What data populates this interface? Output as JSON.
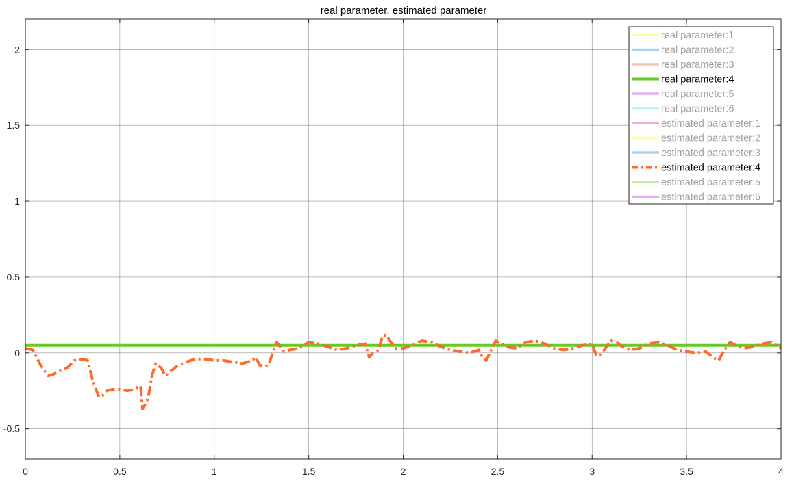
{
  "chart_data": {
    "type": "line",
    "title": "real parameter, estimated parameter",
    "xlabel": "",
    "ylabel": "",
    "xlim": [
      0,
      4
    ],
    "ylim": [
      -0.7,
      2.2
    ],
    "xticks": [
      0,
      0.5,
      1,
      1.5,
      2,
      2.5,
      3,
      3.5,
      4
    ],
    "xtick_labels": [
      "0",
      "0.5",
      "1",
      "1.5",
      "2",
      "2.5",
      "3",
      "3.5",
      "4"
    ],
    "yticks": [
      -0.5,
      0,
      0.5,
      1,
      1.5,
      2
    ],
    "ytick_labels": [
      "-0.5",
      "0",
      "0.5",
      "1",
      "1.5",
      "2"
    ],
    "grid": true,
    "legend_position": "top-right",
    "series": [
      {
        "name": "real parameter:1",
        "color": "#ffff99",
        "style": "solid",
        "active": false,
        "x": [],
        "y": []
      },
      {
        "name": "real parameter:2",
        "color": "#a8d2f5",
        "style": "solid",
        "active": false,
        "x": [],
        "y": []
      },
      {
        "name": "real parameter:3",
        "color": "#f7c5ad",
        "style": "solid",
        "active": false,
        "x": [],
        "y": []
      },
      {
        "name": "real parameter:4",
        "color": "#66cc22",
        "style": "solid",
        "active": true,
        "x": [
          0,
          4
        ],
        "y": [
          0.05,
          0.05
        ]
      },
      {
        "name": "real parameter:5",
        "color": "#e0b0f0",
        "style": "solid",
        "active": false,
        "x": [],
        "y": []
      },
      {
        "name": "real parameter:6",
        "color": "#b5f5f5",
        "style": "solid",
        "active": false,
        "x": [],
        "y": []
      },
      {
        "name": "estimated parameter:1",
        "color": "#f7a8d5",
        "style": "solid",
        "active": false,
        "x": [],
        "y": []
      },
      {
        "name": "estimated parameter:2",
        "color": "#ffffaa",
        "style": "solid",
        "active": false,
        "x": [],
        "y": []
      },
      {
        "name": "estimated parameter:3",
        "color": "#a8d2f5",
        "style": "solid",
        "active": false,
        "x": [],
        "y": []
      },
      {
        "name": "estimated parameter:4",
        "color": "#ff6a2a",
        "style": "dashdot",
        "active": true,
        "x": [
          0,
          0.04,
          0.08,
          0.12,
          0.15,
          0.18,
          0.22,
          0.26,
          0.3,
          0.33,
          0.36,
          0.39,
          0.41,
          0.43,
          0.46,
          0.5,
          0.54,
          0.58,
          0.61,
          0.62,
          0.63,
          0.65,
          0.67,
          0.69,
          0.72,
          0.74,
          0.76,
          0.8,
          0.85,
          0.9,
          0.95,
          1.0,
          1.05,
          1.1,
          1.15,
          1.2,
          1.22,
          1.24,
          1.27,
          1.29,
          1.31,
          1.33,
          1.35,
          1.37,
          1.4,
          1.45,
          1.5,
          1.55,
          1.6,
          1.65,
          1.7,
          1.75,
          1.8,
          1.82,
          1.84,
          1.87,
          1.89,
          1.91,
          1.93,
          1.96,
          2.0,
          2.05,
          2.1,
          2.15,
          2.2,
          2.25,
          2.3,
          2.35,
          2.4,
          2.42,
          2.44,
          2.47,
          2.49,
          2.52,
          2.55,
          2.6,
          2.65,
          2.7,
          2.75,
          2.8,
          2.85,
          2.9,
          2.95,
          3.0,
          3.02,
          3.04,
          3.07,
          3.1,
          3.13,
          3.16,
          3.2,
          3.25,
          3.3,
          3.35,
          3.4,
          3.45,
          3.5,
          3.55,
          3.6,
          3.62,
          3.64,
          3.67,
          3.7,
          3.73,
          3.76,
          3.8,
          3.85,
          3.9,
          3.95,
          4.0
        ],
        "y": [
          0.03,
          0.02,
          -0.08,
          -0.15,
          -0.14,
          -0.12,
          -0.1,
          -0.05,
          -0.04,
          -0.05,
          -0.2,
          -0.29,
          -0.28,
          -0.25,
          -0.24,
          -0.24,
          -0.25,
          -0.24,
          -0.22,
          -0.37,
          -0.35,
          -0.3,
          -0.15,
          -0.07,
          -0.1,
          -0.15,
          -0.13,
          -0.09,
          -0.06,
          -0.04,
          -0.04,
          -0.05,
          -0.05,
          -0.06,
          -0.07,
          -0.05,
          -0.03,
          -0.08,
          -0.09,
          -0.07,
          0.0,
          0.07,
          0.04,
          0.01,
          0.02,
          0.03,
          0.07,
          0.06,
          0.04,
          0.02,
          0.03,
          0.05,
          0.06,
          -0.03,
          0.0,
          0.02,
          0.11,
          0.12,
          0.08,
          0.03,
          0.03,
          0.05,
          0.08,
          0.07,
          0.04,
          0.02,
          0.01,
          0.0,
          0.02,
          -0.03,
          -0.05,
          0.03,
          0.08,
          0.06,
          0.04,
          0.03,
          0.07,
          0.08,
          0.06,
          0.03,
          0.02,
          0.03,
          0.05,
          0.06,
          -0.01,
          -0.02,
          0.03,
          0.08,
          0.07,
          0.04,
          0.02,
          0.03,
          0.06,
          0.07,
          0.05,
          0.02,
          0.01,
          0.0,
          0.01,
          -0.01,
          -0.03,
          -0.05,
          0.02,
          0.07,
          0.05,
          0.03,
          0.04,
          0.06,
          0.07,
          0.03
        ]
      },
      {
        "name": "estimated parameter:5",
        "color": "#c5eaa5",
        "style": "solid",
        "active": false,
        "x": [],
        "y": []
      },
      {
        "name": "estimated parameter:6",
        "color": "#e0b0f0",
        "style": "solid",
        "active": false,
        "x": [],
        "y": []
      }
    ]
  }
}
